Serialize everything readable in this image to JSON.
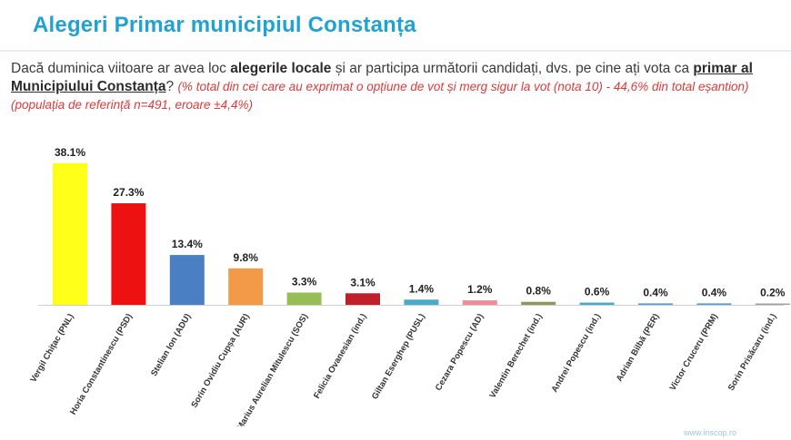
{
  "page": {
    "title": "Alegeri Primar municipiul Constanța",
    "watermark": "www.inscop.ro"
  },
  "question": {
    "part1": "Dacă duminica viitoare ar avea loc ",
    "bold1": "alegerile locale",
    "part2": " și ar participa următorii candidați, dvs. pe cine ați vota ca ",
    "bold2": "primar al Municipiului Constanța",
    "part3": "? ",
    "note": "(% total din cei care au exprimat o opțiune de vot și merg sigur la vot (nota 10) - 44,6% din total eșantion) (populația de referință n=491, eroare ±4,4%)"
  },
  "chart_data": {
    "type": "bar",
    "title": "Alegeri Primar municipiul Constanța",
    "categories": [
      "Vergil Chițac (PNL)",
      "Horia Constantinescu (PSD)",
      "Stelian Ion (ADU)",
      "Sorin Ovidiu Cupșa (AUR)",
      "Marius Aurelian Mitulescu (SOS)",
      "Felicia Ovanesian (ind.)",
      "Giltan Eserghep (PUSL)",
      "Cezara Popescu (AD)",
      "Valentin Berechet (ind.)",
      "Andrei Popescu (ind.)",
      "Adrian Bilbă (PER)",
      "Victor Cruceru (PRM)",
      "Sorin Prisăcaru (ind.)"
    ],
    "values": [
      38.1,
      27.3,
      13.4,
      9.8,
      3.3,
      3.1,
      1.4,
      1.2,
      0.8,
      0.6,
      0.4,
      0.4,
      0.2
    ],
    "labels": [
      "38.1%",
      "27.3%",
      "13.4%",
      "9.8%",
      "3.3%",
      "3.1%",
      "1.4%",
      "1.2%",
      "0.8%",
      "0.6%",
      "0.4%",
      "0.4%",
      "0.2%"
    ],
    "colors": [
      "#ffff1a",
      "#ee1111",
      "#4a7fc4",
      "#f39a48",
      "#97bd58",
      "#c0202a",
      "#4aaac8",
      "#ee8d96",
      "#8a9b58",
      "#4aaac8",
      "#5b9bd5",
      "#5b9bd5",
      "#a0a0a0"
    ],
    "ylim": [
      0,
      40
    ],
    "xlabel": "",
    "ylabel": "",
    "grid": false,
    "legend": "none"
  }
}
